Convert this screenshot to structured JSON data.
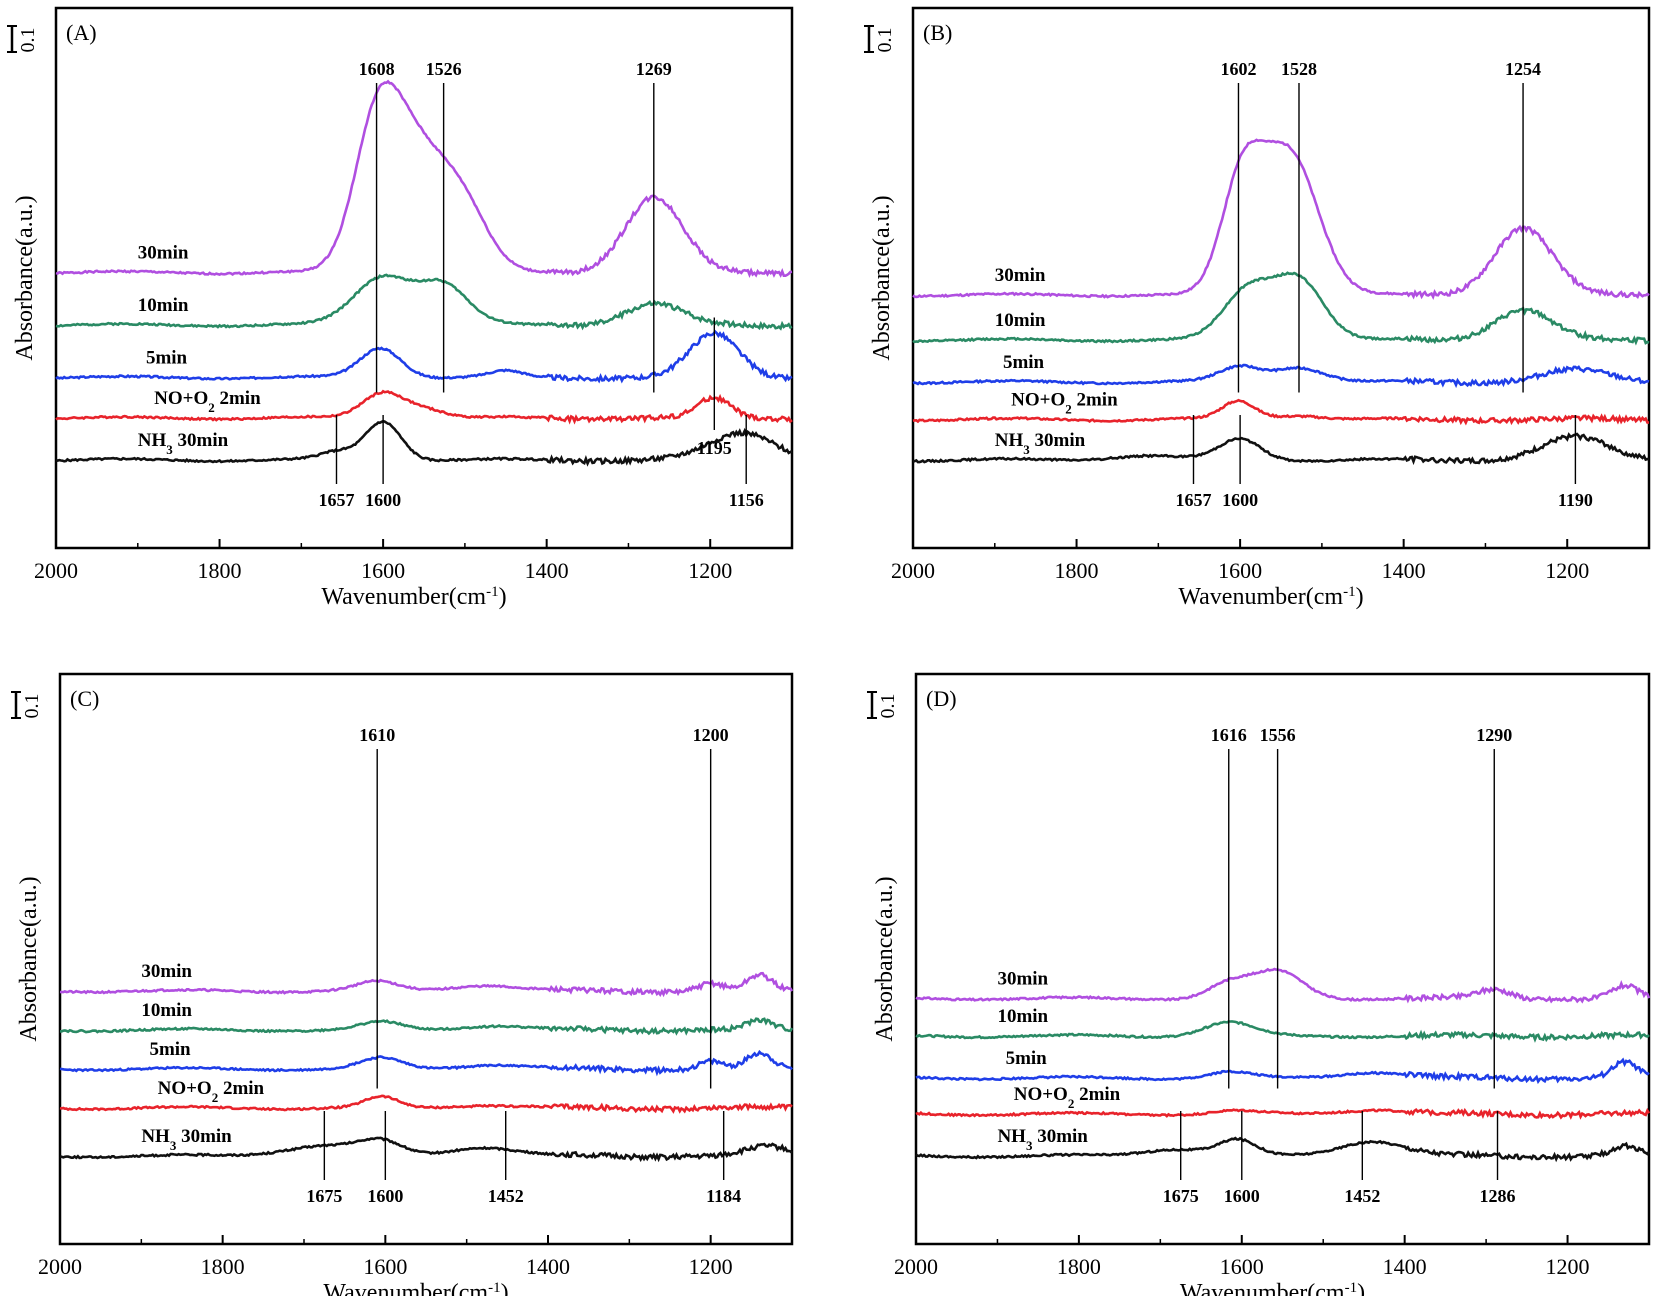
{
  "colors": {
    "30min": "#b04fe0",
    "10min": "#2a8a64",
    "5min": "#1f3ee8",
    "NO+O2 2min": "#e8232b",
    "NH3 30min": "#111111"
  },
  "chart_data": [
    {
      "type": "line",
      "panel_label": "(A)",
      "xlabel": "Wavenumber(cm",
      "xlabel_sup": "-1",
      "xlabel_close": ")",
      "ylabel": "Absorbance(a.u.)",
      "xlim": [
        2000,
        1100
      ],
      "x_ticks": [
        2000,
        1800,
        1600,
        1400,
        1200
      ],
      "x_tick_labels": [
        "2000",
        "1800",
        "1600",
        "1400",
        "1200"
      ],
      "scale_bar": "0.1",
      "y_unit": "offset spectra, absorbance 0.1 per scale bar",
      "series": [
        {
          "name": "30min",
          "baseline": 1.25,
          "peaks": [
            [
              1608,
              0.85,
              28
            ],
            [
              1560,
              0.78,
              38
            ],
            [
              1500,
              0.35,
              30
            ],
            [
              1269,
              0.5,
              35
            ]
          ],
          "label_x": 1900
        },
        {
          "name": "10min",
          "baseline": 0.9,
          "peaks": [
            [
              1600,
              0.32,
              35
            ],
            [
              1526,
              0.26,
              30
            ],
            [
              1269,
              0.14,
              35
            ]
          ],
          "label_x": 1900
        },
        {
          "name": "5min",
          "baseline": 0.55,
          "peaks": [
            [
              1603,
              0.2,
              25
            ],
            [
              1195,
              0.29,
              30
            ],
            [
              1450,
              0.04,
              20
            ]
          ],
          "label_x": 1890
        },
        {
          "name": "NO+O",
          "name_sub": "2",
          "name_tail": " 2min",
          "baseline": 0.28,
          "peaks": [
            [
              1600,
              0.17,
              25
            ],
            [
              1550,
              0.06,
              25
            ],
            [
              1195,
              0.13,
              20
            ]
          ],
          "label_x": 1880
        },
        {
          "name": "NH",
          "name_sub": "3",
          "name_tail": " 30min",
          "baseline": 0.0,
          "peaks": [
            [
              1600,
              0.26,
              22
            ],
            [
              1657,
              0.05,
              20
            ],
            [
              1160,
              0.18,
              40
            ]
          ],
          "label_x": 1900
        }
      ],
      "peak_markers": [
        {
          "x": 1608,
          "label": "1608",
          "pos": "top"
        },
        {
          "x": 1526,
          "label": "1526",
          "pos": "top"
        },
        {
          "x": 1269,
          "label": "1269",
          "pos": "top"
        },
        {
          "x": 1195,
          "label": "1195",
          "pos": "mid"
        },
        {
          "x": 1657,
          "label": "1657",
          "pos": "bottom"
        },
        {
          "x": 1600,
          "label": "1600",
          "pos": "bottom"
        },
        {
          "x": 1156,
          "label": "1156",
          "pos": "bottom"
        }
      ]
    },
    {
      "type": "line",
      "panel_label": "(B)",
      "xlabel": "Wavenumber(cm",
      "xlabel_sup": "-1",
      "xlabel_close": ")",
      "ylabel": "Absorbance(a.u.)",
      "xlim": [
        2000,
        1100
      ],
      "x_ticks": [
        2000,
        1800,
        1600,
        1400,
        1200
      ],
      "x_tick_labels": [
        "2000",
        "1800",
        "1600",
        "1400",
        "1200"
      ],
      "scale_bar": "0.1",
      "y_unit": "offset spectra, absorbance 0.1 per scale bar",
      "series": [
        {
          "name": "30min",
          "baseline": 1.1,
          "peaks": [
            [
              1598,
              0.7,
              25
            ],
            [
              1540,
              0.95,
              35
            ],
            [
              1254,
              0.45,
              35
            ]
          ],
          "label_x": 1900
        },
        {
          "name": "10min",
          "baseline": 0.8,
          "peaks": [
            [
              1590,
              0.33,
              30
            ],
            [
              1528,
              0.4,
              30
            ],
            [
              1254,
              0.2,
              35
            ]
          ],
          "label_x": 1900
        },
        {
          "name": "5min",
          "baseline": 0.52,
          "peaks": [
            [
              1600,
              0.1,
              25
            ],
            [
              1528,
              0.1,
              30
            ],
            [
              1190,
              0.08,
              40
            ]
          ],
          "label_x": 1890
        },
        {
          "name": "NO+O",
          "name_sub": "2",
          "name_tail": " 2min",
          "baseline": 0.27,
          "peaks": [
            [
              1602,
              0.12,
              20
            ],
            [
              1530,
              0.03,
              30
            ]
          ],
          "label_x": 1880
        },
        {
          "name": "NH",
          "name_sub": "3",
          "name_tail": " 30min",
          "baseline": 0.0,
          "peaks": [
            [
              1600,
              0.14,
              25
            ],
            [
              1720,
              0.03,
              40
            ],
            [
              1190,
              0.15,
              40
            ]
          ],
          "label_x": 1900
        }
      ],
      "peak_markers": [
        {
          "x": 1602,
          "label": "1602",
          "pos": "top"
        },
        {
          "x": 1528,
          "label": "1528",
          "pos": "top"
        },
        {
          "x": 1254,
          "label": "1254",
          "pos": "top"
        },
        {
          "x": 1657,
          "label": "1657",
          "pos": "bottom"
        },
        {
          "x": 1600,
          "label": "1600",
          "pos": "bottom"
        },
        {
          "x": 1190,
          "label": "1190",
          "pos": "bottom"
        }
      ]
    },
    {
      "type": "line",
      "panel_label": "(C)",
      "xlabel": "Wavenumber(cm",
      "xlabel_sup": "-1",
      "xlabel_close": ")",
      "ylabel": "Absorbance(a.u.)",
      "xlim": [
        2000,
        1100
      ],
      "x_ticks": [
        2000,
        1800,
        1600,
        1400,
        1200
      ],
      "x_tick_labels": [
        "2000",
        "1800",
        "1600",
        "1400",
        "1200"
      ],
      "scale_bar": "0.1",
      "y_unit": "offset spectra, absorbance 0.1 per scale bar",
      "series": [
        {
          "name": "30min",
          "baseline": 1.1,
          "peaks": [
            [
              1610,
              0.06,
              25
            ],
            [
              1480,
              0.04,
              40
            ],
            [
              1200,
              0.05,
              15
            ],
            [
              1140,
              0.1,
              15
            ]
          ],
          "label_x": 1900
        },
        {
          "name": "10min",
          "baseline": 0.84,
          "peaks": [
            [
              1605,
              0.05,
              25
            ],
            [
              1470,
              0.03,
              40
            ],
            [
              1140,
              0.06,
              15
            ]
          ],
          "label_x": 1900
        },
        {
          "name": "5min",
          "baseline": 0.58,
          "peaks": [
            [
              1605,
              0.07,
              25
            ],
            [
              1470,
              0.03,
              40
            ],
            [
              1200,
              0.05,
              15
            ],
            [
              1140,
              0.1,
              15
            ]
          ],
          "label_x": 1890
        },
        {
          "name": "NO+O",
          "name_sub": "2",
          "name_tail": " 2min",
          "baseline": 0.32,
          "peaks": [
            [
              1605,
              0.07,
              20
            ],
            [
              1480,
              0.02,
              40
            ]
          ],
          "label_x": 1880
        },
        {
          "name": "NH",
          "name_sub": "3",
          "name_tail": " 30min",
          "baseline": 0.0,
          "peaks": [
            [
              1605,
              0.08,
              25
            ],
            [
              1675,
              0.07,
              50
            ],
            [
              1480,
              0.06,
              40
            ],
            [
              1130,
              0.06,
              25
            ]
          ],
          "label_x": 1900
        }
      ],
      "peak_markers": [
        {
          "x": 1610,
          "label": "1610",
          "pos": "top"
        },
        {
          "x": 1200,
          "label": "1200",
          "pos": "top"
        },
        {
          "x": 1675,
          "label": "1675",
          "pos": "bottom"
        },
        {
          "x": 1600,
          "label": "1600",
          "pos": "bottom"
        },
        {
          "x": 1452,
          "label": "1452",
          "pos": "bottom"
        },
        {
          "x": 1184,
          "label": "1184",
          "pos": "bottom"
        }
      ]
    },
    {
      "type": "line",
      "panel_label": "(D)",
      "xlabel": "Wavenumber(cm",
      "xlabel_sup": "-1",
      "xlabel_close": ")",
      "ylabel": "Absorbance(a.u.)",
      "xlim": [
        2000,
        1100
      ],
      "x_ticks": [
        2000,
        1800,
        1600,
        1400,
        1200
      ],
      "x_tick_labels": [
        "2000",
        "1800",
        "1600",
        "1400",
        "1200"
      ],
      "scale_bar": "0.1",
      "y_unit": "offset spectra, absorbance 0.1 per scale bar",
      "series": [
        {
          "name": "30min",
          "baseline": 1.05,
          "peaks": [
            [
              1616,
              0.1,
              25
            ],
            [
              1556,
              0.18,
              30
            ],
            [
              1290,
              0.06,
              20
            ],
            [
              1130,
              0.08,
              15
            ]
          ],
          "label_x": 1900
        },
        {
          "name": "10min",
          "baseline": 0.8,
          "peaks": [
            [
              1616,
              0.09,
              30
            ]
          ],
          "label_x": 1900
        },
        {
          "name": "5min",
          "baseline": 0.52,
          "peaks": [
            [
              1616,
              0.04,
              25
            ],
            [
              1440,
              0.04,
              40
            ],
            [
              1130,
              0.1,
              15
            ]
          ],
          "label_x": 1890
        },
        {
          "name": "NO+O",
          "name_sub": "2",
          "name_tail": " 2min",
          "baseline": 0.28,
          "peaks": [
            [
              1610,
              0.02,
              25
            ],
            [
              1440,
              0.03,
              40
            ]
          ],
          "label_x": 1880
        },
        {
          "name": "NH",
          "name_sub": "3",
          "name_tail": " 30min",
          "baseline": 0.0,
          "peaks": [
            [
              1605,
              0.1,
              22
            ],
            [
              1680,
              0.05,
              40
            ],
            [
              1440,
              0.1,
              40
            ],
            [
              1130,
              0.06,
              15
            ]
          ],
          "label_x": 1900
        }
      ],
      "peak_markers": [
        {
          "x": 1616,
          "label": "1616",
          "pos": "top"
        },
        {
          "x": 1556,
          "label": "1556",
          "pos": "top"
        },
        {
          "x": 1290,
          "label": "1290",
          "pos": "top"
        },
        {
          "x": 1675,
          "label": "1675",
          "pos": "bottom"
        },
        {
          "x": 1600,
          "label": "1600",
          "pos": "bottom"
        },
        {
          "x": 1452,
          "label": "1452",
          "pos": "bottom"
        },
        {
          "x": 1286,
          "label": "1286",
          "pos": "bottom"
        }
      ]
    }
  ]
}
